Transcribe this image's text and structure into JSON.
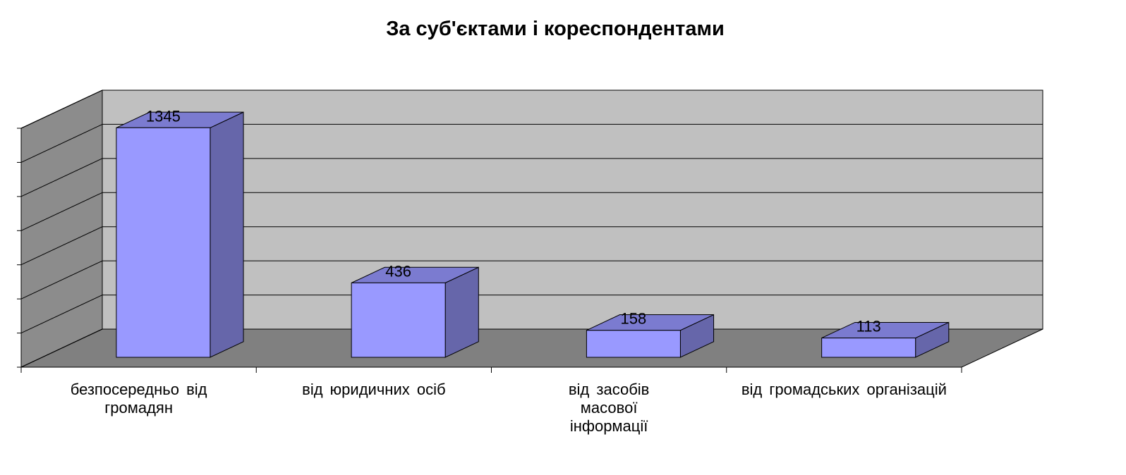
{
  "chart_data": {
    "type": "bar3d",
    "title": "За суб'єктами і кореспондентами",
    "categories": [
      "безпосередньо від громадян",
      "від юридичних осіб",
      "від засобів масової інформації",
      "від громадських організацій"
    ],
    "values": [
      1345,
      436,
      158,
      113
    ],
    "color": "#9999ff",
    "ylim": [
      0,
      1400
    ],
    "yticks": [
      0,
      200,
      400,
      600,
      800,
      1000,
      1200,
      1400
    ],
    "grid": true,
    "show_tick_labels": false
  }
}
